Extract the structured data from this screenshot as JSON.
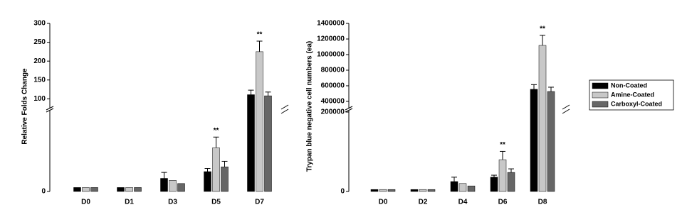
{
  "chart_data": [
    {
      "type": "bar",
      "ylabel": "Relative Folds Change",
      "categories": [
        "D0",
        "D1",
        "D3",
        "D5",
        "D7"
      ],
      "series": [
        {
          "color": "#000000",
          "values": [
            1,
            1,
            3.3,
            5,
            111
          ],
          "errors": [
            0,
            0,
            1.5,
            0.8,
            12
          ]
        },
        {
          "color": "#c8c8c8",
          "values": [
            1,
            1,
            2.8,
            11,
            225
          ],
          "errors": [
            0,
            0,
            0,
            2.7,
            28
          ],
          "significance": [
            null,
            null,
            null,
            "**",
            "**"
          ]
        },
        {
          "color": "#666666",
          "values": [
            1,
            1,
            2,
            6.2,
            108
          ],
          "errors": [
            0,
            0,
            0,
            1.4,
            10
          ]
        }
      ],
      "ylim": [
        0,
        300
      ],
      "axis_break": [
        20,
        80
      ],
      "yticks": [
        0,
        100,
        150,
        200,
        250,
        300
      ]
    },
    {
      "type": "bar",
      "ylabel": "Trypan blue negative cell numbers (ea)",
      "categories": [
        "D0",
        "D2",
        "D4",
        "D6",
        "D8"
      ],
      "series": [
        {
          "name": "Non-Coated",
          "color": "#000000",
          "values": [
            5000,
            5000,
            25000,
            36000,
            555000
          ],
          "errors": [
            0,
            0,
            11000,
            5000,
            60000
          ]
        },
        {
          "name": "Amine-Coated",
          "color": "#c8c8c8",
          "values": [
            5000,
            5000,
            20000,
            80000,
            1118000
          ],
          "errors": [
            0,
            0,
            0,
            21000,
            130000
          ],
          "significance": [
            null,
            null,
            null,
            "**",
            "**"
          ]
        },
        {
          "name": "Carboxyl-Coated",
          "color": "#666666",
          "values": [
            5000,
            5000,
            14000,
            48000,
            527000
          ],
          "errors": [
            0,
            0,
            0,
            9000,
            55000
          ]
        }
      ],
      "ylim": [
        0,
        1400000
      ],
      "axis_break": [
        200000,
        336000
      ],
      "yticks": [
        0,
        200000,
        400000,
        600000,
        800000,
        1000000,
        1200000,
        1400000
      ],
      "legend": "right"
    }
  ]
}
